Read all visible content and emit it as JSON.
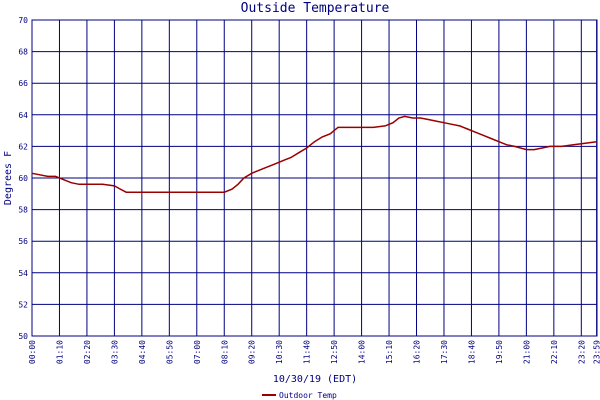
{
  "chart_data": {
    "type": "line",
    "title": "Outside Temperature",
    "xlabel": "10/30/19 (EDT)",
    "ylabel": "Degrees F",
    "ylim": [
      50,
      70
    ],
    "yticks": [
      50,
      52,
      54,
      56,
      58,
      60,
      62,
      64,
      66,
      68,
      70
    ],
    "xlim": [
      "00:00",
      "24:00"
    ],
    "xtick_labels": [
      "00:00",
      "01:10",
      "02:20",
      "03:30",
      "04:40",
      "05:50",
      "07:00",
      "08:10",
      "09:20",
      "10:30",
      "11:40",
      "12:50",
      "14:00",
      "15:10",
      "16:20",
      "17:30",
      "18:40",
      "19:50",
      "21:00",
      "22:10",
      "23:20",
      "23:59"
    ],
    "grid": true,
    "legend_position": "bottom",
    "colors": {
      "series": "#990000",
      "axes": "#000080",
      "background": "#ffffff"
    },
    "series": [
      {
        "name": "Outdoor Temp",
        "x": [
          "00:00",
          "00:20",
          "00:40",
          "01:00",
          "01:20",
          "01:40",
          "02:00",
          "02:30",
          "03:00",
          "03:30",
          "03:45",
          "04:00",
          "04:15",
          "04:40",
          "05:30",
          "06:30",
          "07:30",
          "08:10",
          "08:30",
          "08:45",
          "09:00",
          "09:20",
          "09:40",
          "10:00",
          "10:20",
          "10:40",
          "11:00",
          "11:20",
          "11:40",
          "12:00",
          "12:20",
          "12:40",
          "12:50",
          "13:00",
          "13:20",
          "14:00",
          "14:30",
          "15:00",
          "15:20",
          "15:35",
          "15:50",
          "16:10",
          "16:30",
          "16:50",
          "17:10",
          "17:30",
          "17:50",
          "18:10",
          "18:30",
          "18:50",
          "19:10",
          "19:30",
          "19:50",
          "20:10",
          "20:30",
          "21:00",
          "21:20",
          "21:40",
          "22:00",
          "22:30",
          "23:00",
          "23:30",
          "23:59"
        ],
        "y": [
          60.3,
          60.2,
          60.1,
          60.1,
          59.9,
          59.7,
          59.6,
          59.6,
          59.6,
          59.5,
          59.3,
          59.1,
          59.1,
          59.1,
          59.1,
          59.1,
          59.1,
          59.1,
          59.3,
          59.6,
          60.0,
          60.3,
          60.5,
          60.7,
          60.9,
          61.1,
          61.3,
          61.6,
          61.9,
          62.3,
          62.6,
          62.8,
          63.0,
          63.2,
          63.2,
          63.2,
          63.2,
          63.3,
          63.5,
          63.8,
          63.9,
          63.8,
          63.8,
          63.7,
          63.6,
          63.5,
          63.4,
          63.3,
          63.1,
          62.9,
          62.7,
          62.5,
          62.3,
          62.1,
          62.0,
          61.8,
          61.8,
          61.9,
          62.0,
          62.0,
          62.1,
          62.2,
          62.3
        ]
      }
    ]
  }
}
